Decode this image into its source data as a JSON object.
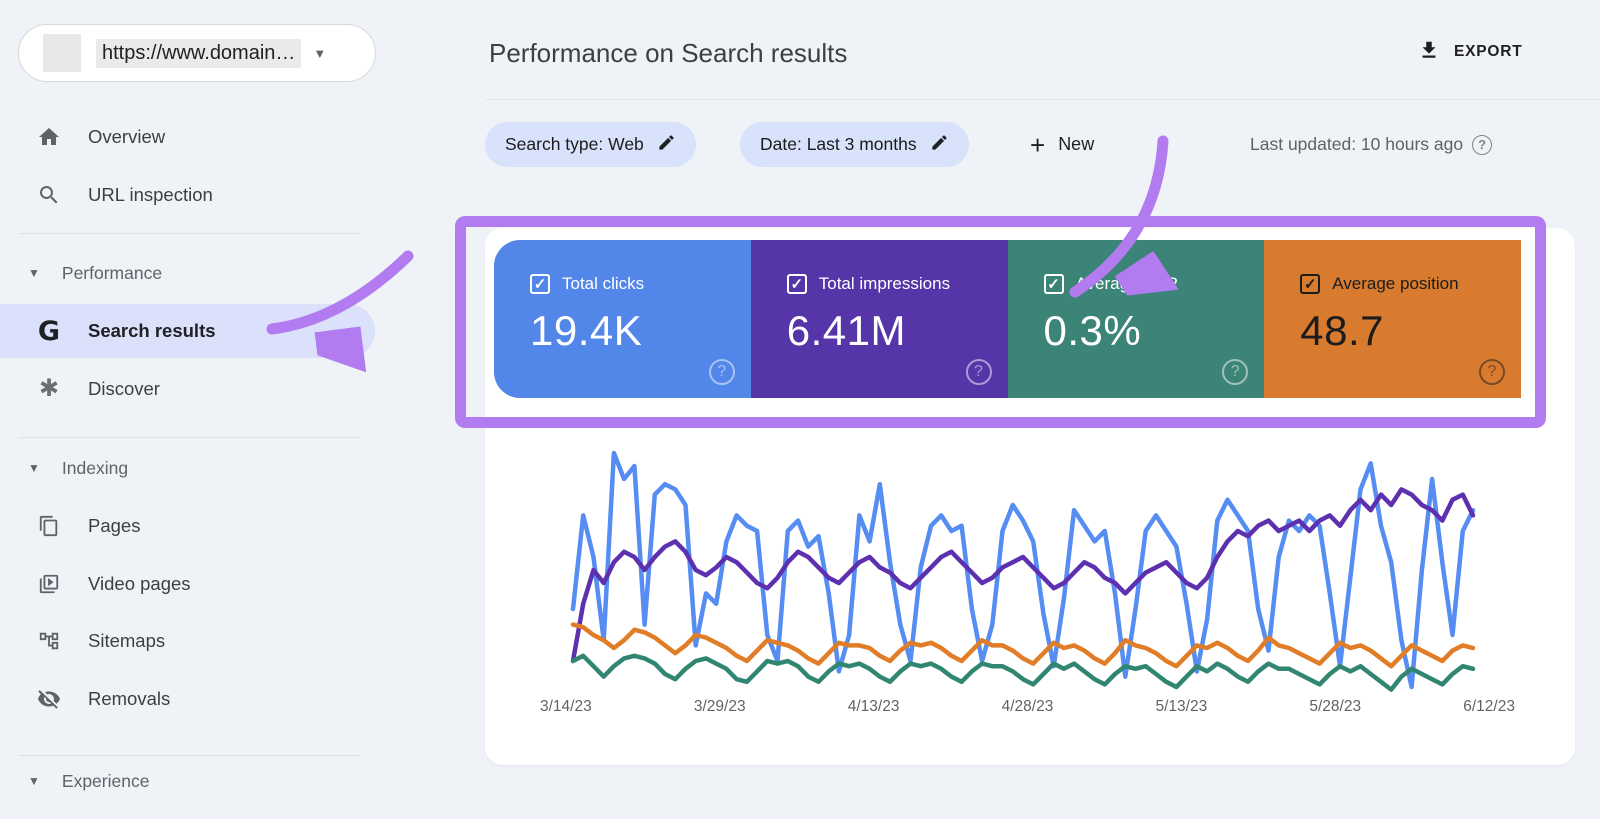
{
  "property": {
    "url": "https://www.domain…"
  },
  "sidebar": {
    "overview": "Overview",
    "url_inspection": "URL inspection",
    "performance": "Performance",
    "search_results": "Search results",
    "discover": "Discover",
    "indexing": "Indexing",
    "pages": "Pages",
    "video_pages": "Video pages",
    "sitemaps": "Sitemaps",
    "removals": "Removals",
    "experience": "Experience"
  },
  "header": {
    "title": "Performance on Search results",
    "export_label": "EXPORT"
  },
  "filters": {
    "chip_search_type": "Search type: Web",
    "chip_date": "Date: Last 3 months",
    "new_label": "New",
    "last_updated": "Last updated: 10 hours ago",
    "help_glyph": "?"
  },
  "metrics": [
    {
      "label": "Total clicks",
      "value": "19.4K",
      "color": "#5286e9",
      "text_color": "#ffffff"
    },
    {
      "label": "Total impressions",
      "value": "6.41M",
      "color": "#5635a8",
      "text_color": "#ffffff"
    },
    {
      "label": "Average CTR",
      "value": "0.3%",
      "color": "#3c8477",
      "text_color": "#ffffff"
    },
    {
      "label": "Average position",
      "value": "48.7",
      "color": "#d87b2e",
      "text_color": "#1c1c1c"
    }
  ],
  "annotation": {
    "color": "#b27cf0"
  },
  "chart_data": {
    "type": "line",
    "title": "",
    "xlabel": "",
    "ylabel": "",
    "x_labels": [
      "3/14/23",
      "3/29/23",
      "4/13/23",
      "4/28/23",
      "5/13/23",
      "5/28/23",
      "6/12/23"
    ],
    "ylim": [
      0,
      100
    ],
    "grid": false,
    "legend": "none",
    "series": [
      {
        "name": "Total clicks",
        "color": "#568df2",
        "values": [
          40,
          76,
          60,
          28,
          100,
          90,
          95,
          34,
          84,
          88,
          86,
          80,
          26,
          46,
          42,
          66,
          76,
          72,
          70,
          30,
          20,
          70,
          74,
          64,
          68,
          46,
          16,
          30,
          76,
          66,
          88,
          58,
          34,
          20,
          56,
          72,
          76,
          70,
          72,
          40,
          20,
          34,
          70,
          80,
          74,
          66,
          38,
          18,
          44,
          78,
          72,
          66,
          70,
          46,
          14,
          40,
          70,
          76,
          70,
          64,
          42,
          16,
          36,
          74,
          82,
          76,
          70,
          40,
          24,
          60,
          74,
          70,
          76,
          72,
          46,
          18,
          52,
          86,
          96,
          72,
          58,
          28,
          10,
          55,
          90,
          58,
          30,
          70,
          78
        ]
      },
      {
        "name": "Total impressions",
        "color": "#5c30ae",
        "values": [
          20,
          42,
          55,
          50,
          58,
          62,
          60,
          55,
          60,
          64,
          66,
          62,
          55,
          53,
          56,
          60,
          58,
          54,
          50,
          48,
          52,
          58,
          62,
          60,
          56,
          52,
          50,
          54,
          58,
          60,
          56,
          54,
          50,
          48,
          52,
          56,
          60,
          62,
          58,
          54,
          50,
          52,
          56,
          58,
          60,
          56,
          52,
          48,
          50,
          54,
          58,
          56,
          52,
          50,
          46,
          50,
          54,
          56,
          58,
          54,
          50,
          48,
          52,
          60,
          66,
          70,
          68,
          72,
          74,
          70,
          72,
          74,
          70,
          74,
          76,
          72,
          78,
          82,
          78,
          84,
          80,
          86,
          84,
          80,
          78,
          74,
          82,
          84,
          76
        ]
      },
      {
        "name": "Average position",
        "color": "#e07d26",
        "values": [
          34,
          33,
          30,
          28,
          25,
          28,
          32,
          31,
          29,
          26,
          23,
          26,
          30,
          29,
          27,
          25,
          22,
          20,
          24,
          28,
          27,
          26,
          24,
          21,
          19,
          23,
          27,
          26,
          26,
          25,
          22,
          20,
          24,
          27,
          26,
          27,
          25,
          22,
          20,
          24,
          28,
          26,
          26,
          24,
          21,
          19,
          23,
          27,
          25,
          26,
          24,
          21,
          19,
          23,
          28,
          26,
          25,
          23,
          20,
          18,
          22,
          26,
          25,
          27,
          25,
          22,
          20,
          24,
          29,
          26,
          25,
          23,
          21,
          19,
          23,
          27,
          25,
          26,
          24,
          21,
          18,
          22,
          26,
          24,
          22,
          20,
          24,
          26,
          25
        ]
      },
      {
        "name": "Average CTR",
        "color": "#318672",
        "values": [
          20,
          22,
          18,
          14,
          18,
          21,
          22,
          21,
          19,
          15,
          13,
          17,
          20,
          21,
          19,
          17,
          13,
          12,
          16,
          20,
          19,
          20,
          18,
          14,
          12,
          16,
          19,
          18,
          19,
          17,
          14,
          12,
          16,
          19,
          18,
          19,
          17,
          14,
          12,
          16,
          19,
          18,
          18,
          16,
          13,
          11,
          15,
          19,
          17,
          19,
          16,
          13,
          11,
          15,
          18,
          17,
          18,
          15,
          12,
          10,
          14,
          18,
          16,
          19,
          17,
          14,
          12,
          16,
          19,
          17,
          17,
          15,
          13,
          11,
          15,
          18,
          16,
          18,
          15,
          12,
          9,
          14,
          17,
          15,
          13,
          11,
          15,
          18,
          17
        ]
      }
    ]
  }
}
